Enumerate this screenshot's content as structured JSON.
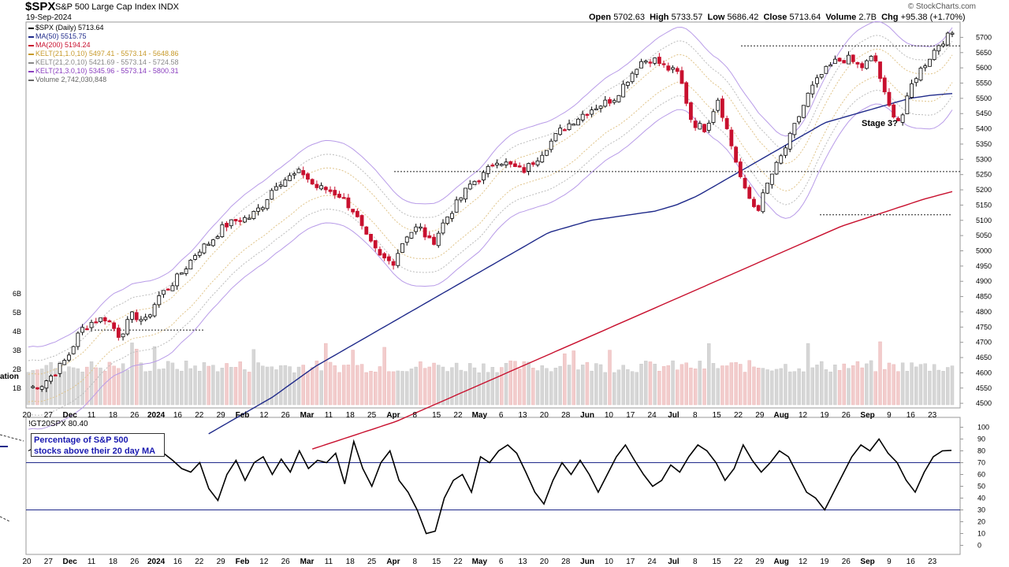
{
  "header": {
    "symbol": "$SPX",
    "name": "S&P 500 Large Cap Index",
    "exchange": "INDX",
    "date": "19-Sep-2024",
    "brand": "© StockCharts.com",
    "open_label": "Open",
    "open": "5702.63",
    "high_label": "High",
    "high": "5733.57",
    "low_label": "Low",
    "low": "5686.42",
    "close_label": "Close",
    "close": "5713.64",
    "volume_label": "Volume",
    "volume": "2.7B",
    "chg_label": "Chg",
    "chg": "+95.38 (+1.70%)"
  },
  "legend": [
    {
      "text": "$SPX (Daily) 5713.64",
      "color": "#000000"
    },
    {
      "text": "MA(50) 5515.75",
      "color": "#1f2a8a"
    },
    {
      "text": "MA(200) 5194.24",
      "color": "#c8102e"
    },
    {
      "text": "KELT(21,1.0,10) 5497.41 - 5573.14 - 5648.86",
      "color": "#c79a2c"
    },
    {
      "text": "KELT(21,2.0,10) 5421.69 - 5573.14 - 5724.58",
      "color": "#888888"
    },
    {
      "text": "KELT(21,3.0,10) 5345.96 - 5573.14 - 5800.31",
      "color": "#8a3fbf"
    },
    {
      "text": "Volume 2,742,030,848",
      "color": "#666666"
    }
  ],
  "annotations": {
    "stage": "Stage 3?",
    "note_line1": "Percentage of S&P 500",
    "note_line2": "stocks above their 20 day MA",
    "indicator_label": "!GT20SPX 80.40",
    "left_cut": "ation"
  },
  "colors": {
    "up": "#ffffff",
    "down": "#c8102e",
    "ma50": "#1f2a8a",
    "ma200": "#c8102e",
    "kelt3": "#b89be8",
    "volume": "#d6d6d6",
    "volume_down": "#f2cccc"
  },
  "chart_data": [
    {
      "type": "candlestick",
      "title": "$SPX (Daily)",
      "x_tick_labels": [
        "20",
        "27",
        "Dec",
        "11",
        "18",
        "26",
        "2024",
        "16",
        "22",
        "29",
        "Feb",
        "12",
        "26",
        "Mar",
        "11",
        "18",
        "25",
        "Apr",
        "8",
        "15",
        "22",
        "May",
        "6",
        "13",
        "20",
        "28",
        "Jun",
        "10",
        "17",
        "24",
        "Jul",
        "8",
        "15",
        "22",
        "29",
        "Aug",
        "12",
        "19",
        "26",
        "Sep",
        "9",
        "16",
        "23"
      ],
      "y_ticks": [
        4500,
        4550,
        4600,
        4650,
        4700,
        4750,
        4800,
        4850,
        4900,
        4950,
        5000,
        5050,
        5100,
        5150,
        5200,
        5250,
        5300,
        5350,
        5400,
        5450,
        5500,
        5550,
        5600,
        5650,
        5700
      ],
      "ylim": [
        4490,
        5745
      ],
      "volume_ticks": [
        "1B",
        "2B",
        "3B",
        "4B",
        "5B",
        "6B"
      ],
      "close_path": [
        4550,
        4560,
        4600,
        4650,
        4740,
        4770,
        4780,
        4720,
        4790,
        4770,
        4850,
        4890,
        4940,
        5000,
        5030,
        5080,
        5100,
        5110,
        5150,
        5220,
        5240,
        5260,
        5210,
        5200,
        5180,
        5130,
        5040,
        4980,
        4960,
        5050,
        5080,
        5020,
        5100,
        5160,
        5220,
        5250,
        5300,
        5280,
        5260,
        5300,
        5350,
        5400,
        5430,
        5460,
        5480,
        5500,
        5560,
        5620,
        5630,
        5600,
        5580,
        5420,
        5400,
        5500,
        5350,
        5200,
        5130,
        5240,
        5320,
        5420,
        5520,
        5580,
        5620,
        5630,
        5600,
        5640,
        5480,
        5420,
        5560,
        5620,
        5680,
        5713.64
      ],
      "ma50": [
        4400,
        4440,
        4480,
        4520,
        4570,
        4620,
        4660,
        4700,
        4740,
        4780,
        4820,
        4860,
        4900,
        4940,
        4980,
        5020,
        5060,
        5080,
        5100,
        5110,
        5120,
        5130,
        5150,
        5180,
        5220,
        5260,
        5300,
        5340,
        5380,
        5420,
        5440,
        5460,
        5480,
        5500,
        5510,
        5515.75
      ],
      "ma200": [
        4350,
        4380,
        4410,
        4440,
        4480,
        4520,
        4560,
        4600,
        4640,
        4680,
        4720,
        4760,
        4800,
        4840,
        4880,
        4920,
        4960,
        5000,
        5040,
        5080,
        5110,
        5140,
        5170,
        5194.24
      ],
      "horizontal_lines": [
        5672,
        5260,
        5118,
        4740
      ],
      "stage_label": "Stage 3?"
    },
    {
      "type": "line",
      "title": "!GT20SPX",
      "last_value": 80.4,
      "y_ticks": [
        0,
        10,
        20,
        30,
        40,
        50,
        60,
        70,
        80,
        90,
        100
      ],
      "ylim": [
        -3,
        103
      ],
      "reference_lines": [
        70,
        30
      ],
      "values": [
        83,
        78,
        72,
        65,
        62,
        70,
        48,
        38,
        60,
        72,
        55,
        70,
        75,
        60,
        73,
        62,
        80,
        65,
        72,
        70,
        78,
        52,
        88,
        65,
        50,
        70,
        80,
        55,
        45,
        30,
        10,
        12,
        40,
        55,
        60,
        45,
        75,
        70,
        80,
        85,
        78,
        62,
        45,
        35,
        55,
        70,
        60,
        72,
        60,
        45,
        60,
        75,
        85,
        72,
        60,
        50,
        55,
        68,
        62,
        75,
        85,
        80,
        70,
        55,
        65,
        85,
        72,
        62,
        70,
        80,
        75,
        60,
        45,
        40,
        30,
        45,
        60,
        75,
        85,
        80,
        90,
        78,
        70,
        55,
        45,
        62,
        75,
        80,
        80.4
      ]
    }
  ]
}
